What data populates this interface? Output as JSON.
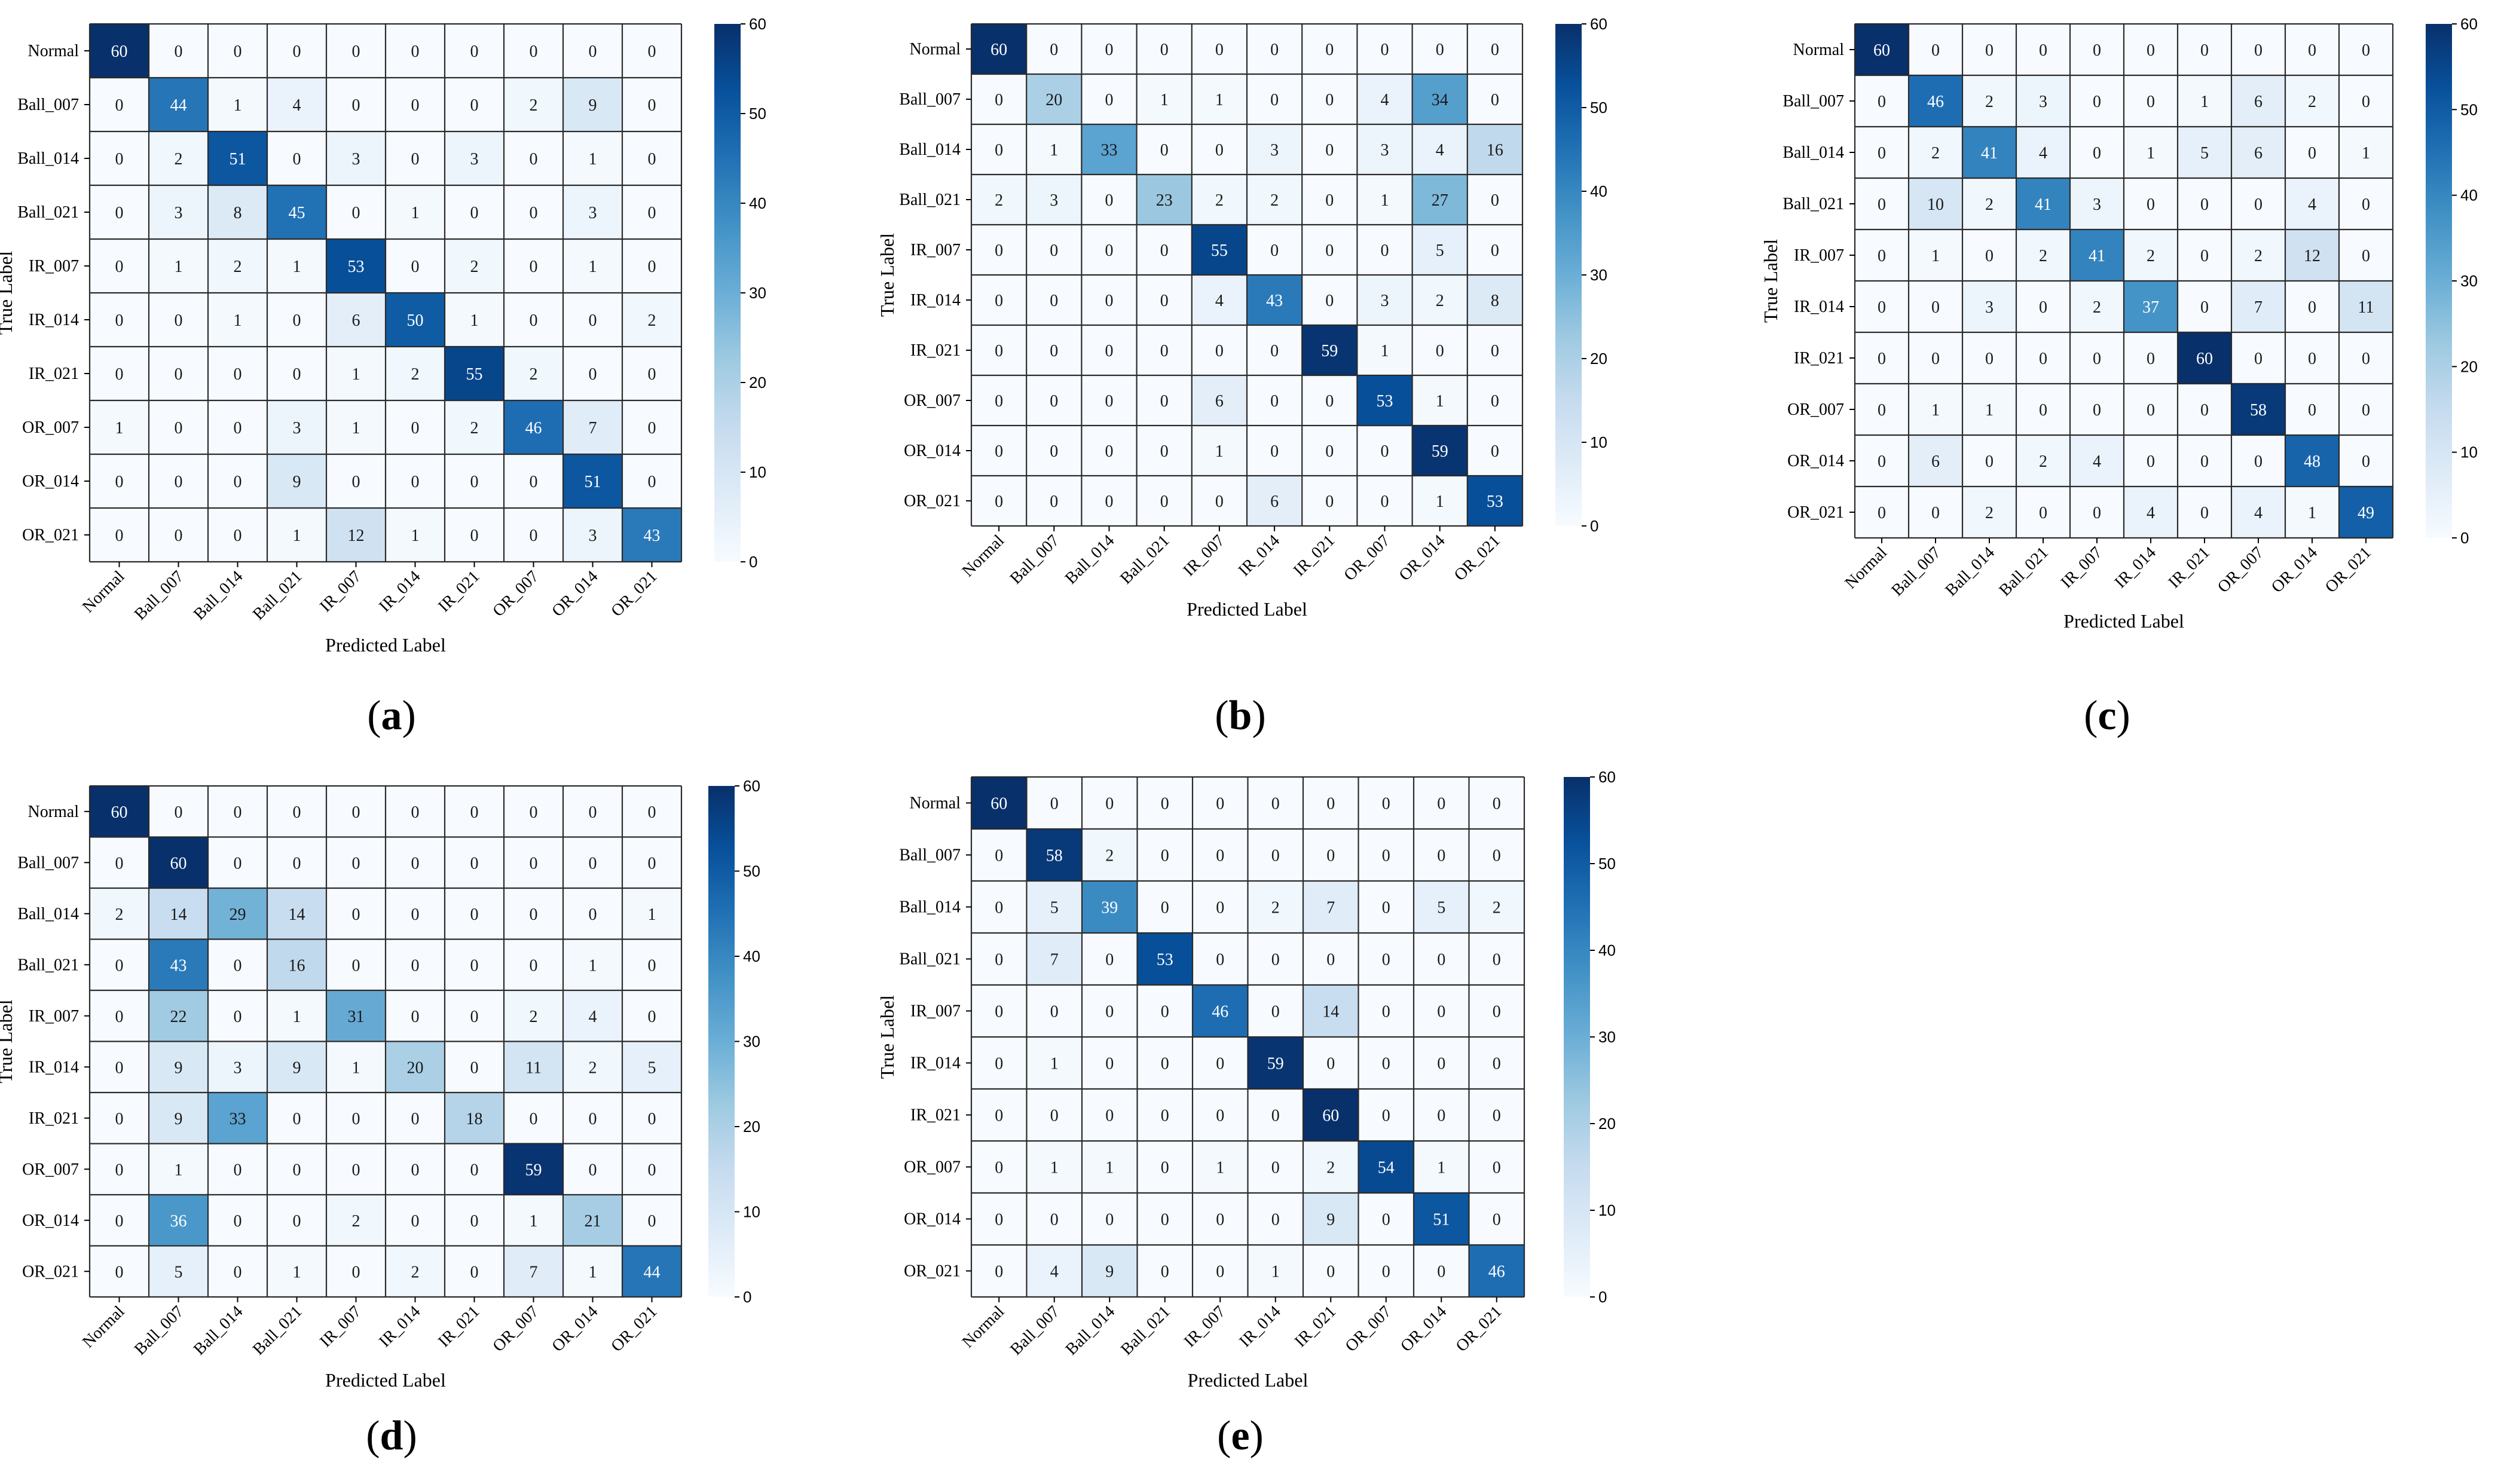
{
  "figure": {
    "classes": [
      "Normal",
      "Ball_007",
      "Ball_014",
      "Ball_021",
      "IR_007",
      "IR_014",
      "IR_021",
      "OR_007",
      "OR_014",
      "OR_021"
    ],
    "xlabel": "Predicted Label",
    "ylabel": "True Label",
    "colorbar_ticks": [
      "0",
      "10",
      "20",
      "30",
      "40",
      "50",
      "60"
    ],
    "colormap": [
      "#f7fbff",
      "#deebf7",
      "#c6dbef",
      "#9ecae1",
      "#6baed6",
      "#4292c6",
      "#2171b5",
      "#08519c",
      "#08306b"
    ]
  },
  "chart_data": [
    {
      "type": "heatmap",
      "panel": "(a)",
      "vmin": 0,
      "vmax": 60,
      "matrix": [
        [
          60,
          0,
          0,
          0,
          0,
          0,
          0,
          0,
          0,
          0
        ],
        [
          0,
          44,
          1,
          4,
          0,
          0,
          0,
          2,
          9,
          0
        ],
        [
          0,
          2,
          51,
          0,
          3,
          0,
          3,
          0,
          1,
          0
        ],
        [
          0,
          3,
          8,
          45,
          0,
          1,
          0,
          0,
          3,
          0
        ],
        [
          0,
          1,
          2,
          1,
          53,
          0,
          2,
          0,
          1,
          0
        ],
        [
          0,
          0,
          1,
          0,
          6,
          50,
          1,
          0,
          0,
          2
        ],
        [
          0,
          0,
          0,
          0,
          1,
          2,
          55,
          2,
          0,
          0
        ],
        [
          1,
          0,
          0,
          3,
          1,
          0,
          2,
          46,
          7,
          0
        ],
        [
          0,
          0,
          0,
          9,
          0,
          0,
          0,
          0,
          51,
          0
        ],
        [
          0,
          0,
          0,
          1,
          12,
          1,
          0,
          0,
          3,
          43
        ]
      ]
    },
    {
      "type": "heatmap",
      "panel": "(b)",
      "vmin": 0,
      "vmax": 60,
      "matrix": [
        [
          60,
          0,
          0,
          0,
          0,
          0,
          0,
          0,
          0,
          0
        ],
        [
          0,
          20,
          0,
          1,
          1,
          0,
          0,
          4,
          34,
          0
        ],
        [
          0,
          1,
          33,
          0,
          0,
          3,
          0,
          3,
          4,
          16
        ],
        [
          2,
          3,
          0,
          23,
          2,
          2,
          0,
          1,
          27,
          0
        ],
        [
          0,
          0,
          0,
          0,
          55,
          0,
          0,
          0,
          5,
          0
        ],
        [
          0,
          0,
          0,
          0,
          4,
          43,
          0,
          3,
          2,
          8
        ],
        [
          0,
          0,
          0,
          0,
          0,
          0,
          59,
          1,
          0,
          0
        ],
        [
          0,
          0,
          0,
          0,
          6,
          0,
          0,
          53,
          1,
          0
        ],
        [
          0,
          0,
          0,
          0,
          1,
          0,
          0,
          0,
          59,
          0
        ],
        [
          0,
          0,
          0,
          0,
          0,
          6,
          0,
          0,
          1,
          53
        ]
      ]
    },
    {
      "type": "heatmap",
      "panel": "(c)",
      "vmin": 0,
      "vmax": 60,
      "matrix": [
        [
          60,
          0,
          0,
          0,
          0,
          0,
          0,
          0,
          0,
          0
        ],
        [
          0,
          46,
          2,
          3,
          0,
          0,
          1,
          6,
          2,
          0
        ],
        [
          0,
          2,
          41,
          4,
          0,
          1,
          5,
          6,
          0,
          1
        ],
        [
          0,
          10,
          2,
          41,
          3,
          0,
          0,
          0,
          4,
          0
        ],
        [
          0,
          1,
          0,
          2,
          41,
          2,
          0,
          2,
          12,
          0
        ],
        [
          0,
          0,
          3,
          0,
          2,
          37,
          0,
          7,
          0,
          11
        ],
        [
          0,
          0,
          0,
          0,
          0,
          0,
          60,
          0,
          0,
          0
        ],
        [
          0,
          1,
          1,
          0,
          0,
          0,
          0,
          58,
          0,
          0
        ],
        [
          0,
          6,
          0,
          2,
          4,
          0,
          0,
          0,
          48,
          0
        ],
        [
          0,
          0,
          2,
          0,
          0,
          4,
          0,
          4,
          1,
          49
        ]
      ]
    },
    {
      "type": "heatmap",
      "panel": "(d)",
      "vmin": 0,
      "vmax": 60,
      "matrix": [
        [
          60,
          0,
          0,
          0,
          0,
          0,
          0,
          0,
          0,
          0
        ],
        [
          0,
          60,
          0,
          0,
          0,
          0,
          0,
          0,
          0,
          0
        ],
        [
          2,
          14,
          29,
          14,
          0,
          0,
          0,
          0,
          0,
          1
        ],
        [
          0,
          43,
          0,
          16,
          0,
          0,
          0,
          0,
          1,
          0
        ],
        [
          0,
          22,
          0,
          1,
          31,
          0,
          0,
          2,
          4,
          0
        ],
        [
          0,
          9,
          3,
          9,
          1,
          20,
          0,
          11,
          2,
          5
        ],
        [
          0,
          9,
          33,
          0,
          0,
          0,
          18,
          0,
          0,
          0
        ],
        [
          0,
          1,
          0,
          0,
          0,
          0,
          0,
          59,
          0,
          0
        ],
        [
          0,
          36,
          0,
          0,
          2,
          0,
          0,
          1,
          21,
          0
        ],
        [
          0,
          5,
          0,
          1,
          0,
          2,
          0,
          7,
          1,
          44
        ]
      ]
    },
    {
      "type": "heatmap",
      "panel": "(e)",
      "vmin": 0,
      "vmax": 60,
      "matrix": [
        [
          60,
          0,
          0,
          0,
          0,
          0,
          0,
          0,
          0,
          0
        ],
        [
          0,
          58,
          2,
          0,
          0,
          0,
          0,
          0,
          0,
          0
        ],
        [
          0,
          5,
          39,
          0,
          0,
          2,
          7,
          0,
          5,
          2
        ],
        [
          0,
          7,
          0,
          53,
          0,
          0,
          0,
          0,
          0,
          0
        ],
        [
          0,
          0,
          0,
          0,
          46,
          0,
          14,
          0,
          0,
          0
        ],
        [
          0,
          1,
          0,
          0,
          0,
          59,
          0,
          0,
          0,
          0
        ],
        [
          0,
          0,
          0,
          0,
          0,
          0,
          60,
          0,
          0,
          0
        ],
        [
          0,
          1,
          1,
          0,
          1,
          0,
          2,
          54,
          1,
          0
        ],
        [
          0,
          0,
          0,
          0,
          0,
          0,
          9,
          0,
          51,
          0
        ],
        [
          0,
          4,
          9,
          0,
          0,
          1,
          0,
          0,
          0,
          46
        ]
      ]
    }
  ]
}
